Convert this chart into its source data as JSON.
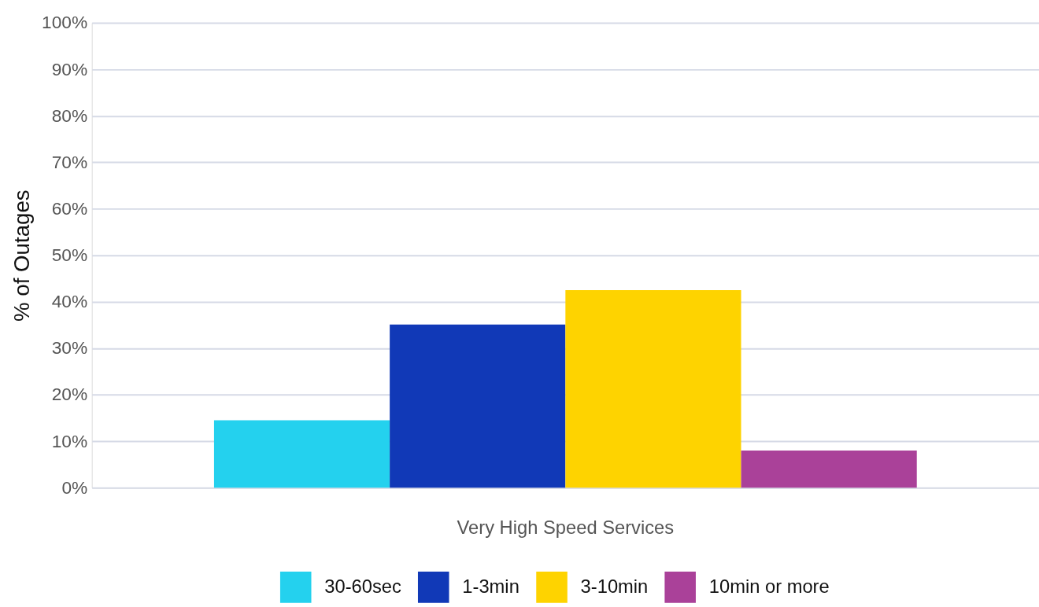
{
  "chart_data": {
    "type": "bar",
    "ylabel": "% of Outages",
    "categories": [
      "Very High Speed Services"
    ],
    "series": [
      {
        "name": "30-60sec",
        "color": "#24d1ee",
        "values": [
          14.5
        ]
      },
      {
        "name": "1-3min",
        "color": "#1139b7",
        "values": [
          35.1
        ]
      },
      {
        "name": "3-10min",
        "color": "#fed300",
        "values": [
          42.5
        ]
      },
      {
        "name": "10min or more",
        "color": "#aa4199",
        "values": [
          8.0
        ]
      }
    ],
    "ylim": [
      0,
      100
    ],
    "yticks": [
      {
        "value": 0,
        "label": "0%"
      },
      {
        "value": 10,
        "label": "10%"
      },
      {
        "value": 20,
        "label": "20%"
      },
      {
        "value": 30,
        "label": "30%"
      },
      {
        "value": 40,
        "label": "40%"
      },
      {
        "value": 50,
        "label": "50%"
      },
      {
        "value": 60,
        "label": "60%"
      },
      {
        "value": 70,
        "label": "70%"
      },
      {
        "value": 80,
        "label": "80%"
      },
      {
        "value": 90,
        "label": "90%"
      },
      {
        "value": 100,
        "label": "100%"
      }
    ],
    "grid": "y",
    "legend": "bottom"
  }
}
